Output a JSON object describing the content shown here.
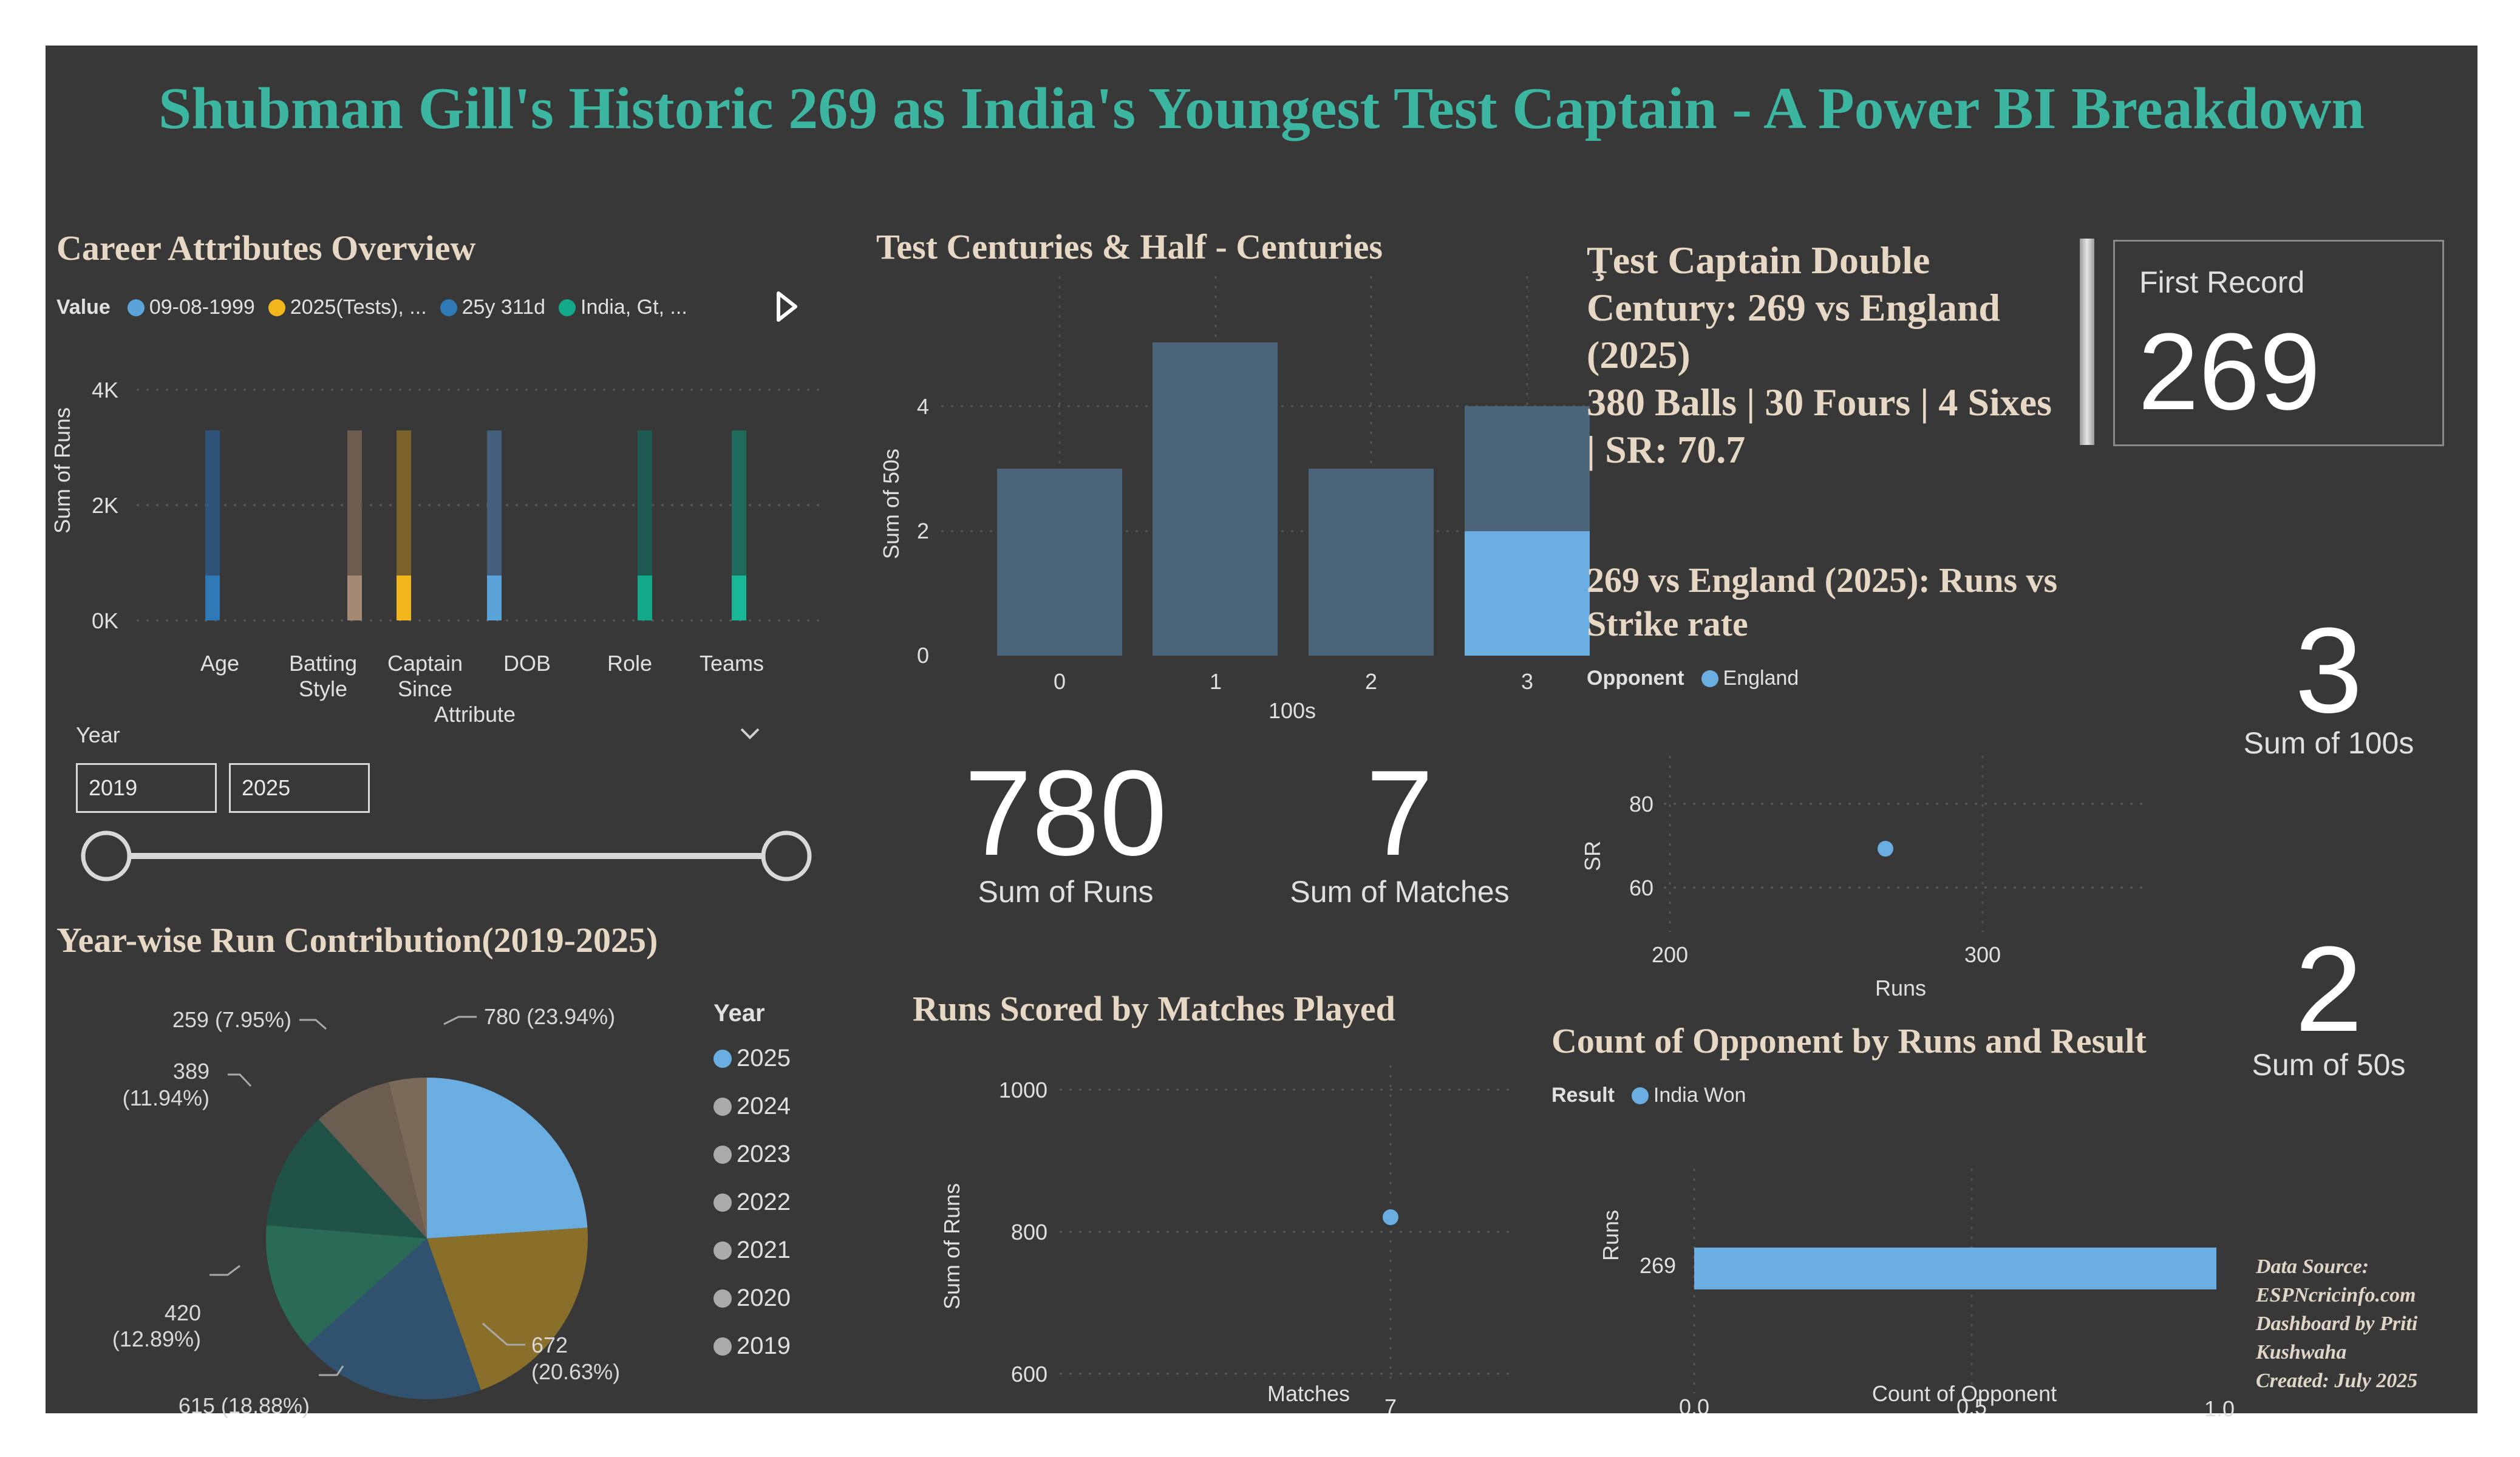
{
  "title": "Shubman Gill's Historic 269 as India's Youngest Test Captain - A Power BI Breakdown",
  "career": {
    "title": "Career Attributes Overview",
    "legend_label": "Value",
    "legend_items": [
      {
        "label": "09-08-1999",
        "color": "#5ba3d9"
      },
      {
        "label": "2025(Tests), ...",
        "color": "#f2b51c"
      },
      {
        "label": "25y 311d",
        "color": "#2e78b6"
      },
      {
        "label": "India, Gt, ...",
        "color": "#12a98a"
      }
    ],
    "play_icon": "play-icon",
    "ylabel": "Sum of Runs",
    "xlabel": "Attribute",
    "yticks": [
      "4K",
      "2K",
      "0K"
    ]
  },
  "slicer": {
    "label": "Year",
    "from": "2019",
    "to": "2025",
    "chevron_icon": "chevron-down-icon"
  },
  "pie": {
    "title": "Year-wise Run Contribution(2019-2025)",
    "legend_title": "Year",
    "labels": {
      "l2025": "780 (23.94%)",
      "l2024": "672",
      "l2024b": "(20.63%)",
      "l2023": "615 (18.88%)",
      "l2022": "420",
      "l2022b": "(12.89%)",
      "l2021": "389",
      "l2021b": "(11.94%)",
      "l2020": "259 (7.95%)"
    },
    "years": [
      "2025",
      "2024",
      "2023",
      "2022",
      "2021",
      "2020",
      "2019"
    ]
  },
  "centuries": {
    "title": "Test Centuries & Half - Centuries",
    "ylabel": "Sum of 50s",
    "xlabel": "100s",
    "yticks": [
      "4",
      "2",
      "0"
    ],
    "xticks": [
      "0",
      "1",
      "2",
      "3"
    ]
  },
  "kpis": {
    "runs_value": "780",
    "runs_label": "Sum of Runs",
    "matches_value": "7",
    "matches_label": "Sum of Matches",
    "hundreds_value": "3",
    "hundreds_label": "Sum of 100s",
    "fifties_value": "2",
    "fifties_label": "Sum of 50s"
  },
  "runs_matches": {
    "title": "Runs Scored by Matches Played",
    "ylabel": "Sum of Runs",
    "xlabel": "Matches",
    "yticks": [
      "1000",
      "800",
      "600"
    ],
    "xtick": "7"
  },
  "captain": {
    "line1": "Ţest Captain Double",
    "line2": "Century: 269 vs England",
    "line3": "(2025)",
    "line4": "380 Balls | 30 Fours | 4 Sixes",
    "line5": "| SR: 70.7"
  },
  "record": {
    "label": "First Record",
    "value": "269"
  },
  "scatter_sr": {
    "title_line1": "269 vs England (2025): Runs vs",
    "title_line2": "Strike rate",
    "legend_label": "Opponent",
    "legend_item": "England",
    "ylabel": "SR",
    "xlabel": "Runs",
    "yticks": [
      "80",
      "60"
    ],
    "xticks": [
      "200",
      "300"
    ]
  },
  "opponent": {
    "title": "Count of Opponent by Runs and Result",
    "legend_label": "Result",
    "legend_item": "India Won",
    "ylabel": "Runs",
    "xlabel": "Count of Opponent",
    "ytick": "269",
    "xticks": [
      "0.0",
      "0.5",
      "1.0"
    ]
  },
  "footer": {
    "line1": "Data Source:",
    "line2": "ESPNcricinfo.com",
    "line3": "Dashboard by Priti",
    "line4": "Kushwaha",
    "line5": "Created: July 2025"
  },
  "colors": {
    "background": "#383838",
    "title": "#3cb6a0",
    "section_title": "#e6d8c4",
    "bar_slate": "#4b6479",
    "accent_blue": "#6aade1"
  },
  "chart_data": [
    {
      "type": "bar",
      "title": "Career Attributes Overview",
      "xlabel": "Attribute",
      "ylabel": "Sum of Runs",
      "categories": [
        "Age",
        "Batting Style",
        "Captain Since",
        "DOB",
        "Role",
        "Teams"
      ],
      "ylim": [
        0,
        4000
      ],
      "series": [
        {
          "name": "Sum of Runs (total)",
          "values": [
            3300,
            3300,
            3300,
            3300,
            3300,
            3300
          ]
        },
        {
          "name": "Sum of Runs (highlighted)",
          "values": [
            780,
            780,
            780,
            780,
            780,
            780
          ]
        }
      ]
    },
    {
      "type": "pie",
      "title": "Year-wise Run Contribution(2019-2025)",
      "categories": [
        "2025",
        "2024",
        "2023",
        "2022",
        "2021",
        "2020",
        "2019"
      ],
      "values": [
        780,
        672,
        615,
        420,
        389,
        259,
        124
      ]
    },
    {
      "type": "bar",
      "title": "Test Centuries & Half - Centuries",
      "xlabel": "100s",
      "ylabel": "Sum of 50s",
      "categories": [
        "0",
        "1",
        "2",
        "3"
      ],
      "ylim": [
        0,
        5
      ],
      "series": [
        {
          "name": "Sum of 50s",
          "values": [
            3,
            5,
            3,
            4
          ]
        },
        {
          "name": "Sum of 50s (highlighted)",
          "values": [
            0,
            0,
            0,
            2
          ]
        }
      ]
    },
    {
      "type": "scatter",
      "title": "Runs Scored by Matches Played",
      "xlabel": "Matches",
      "ylabel": "Sum of Runs",
      "x": [
        7
      ],
      "y": [
        780
      ],
      "ylim": [
        600,
        1000
      ]
    },
    {
      "type": "scatter",
      "title": "269 vs England (2025): Runs vs Strike rate",
      "xlabel": "Runs",
      "ylabel": "SR",
      "series": [
        {
          "name": "England",
          "x": [
            269
          ],
          "y": [
            70.7
          ]
        }
      ],
      "xlim": [
        200,
        300
      ],
      "ylim": [
        60,
        80
      ]
    },
    {
      "type": "bar",
      "title": "Count of Opponent by Runs and Result",
      "xlabel": "Count of Opponent",
      "ylabel": "Runs",
      "categories": [
        "269"
      ],
      "series": [
        {
          "name": "India Won",
          "values": [
            1
          ]
        }
      ],
      "xlim": [
        0,
        1
      ]
    }
  ]
}
